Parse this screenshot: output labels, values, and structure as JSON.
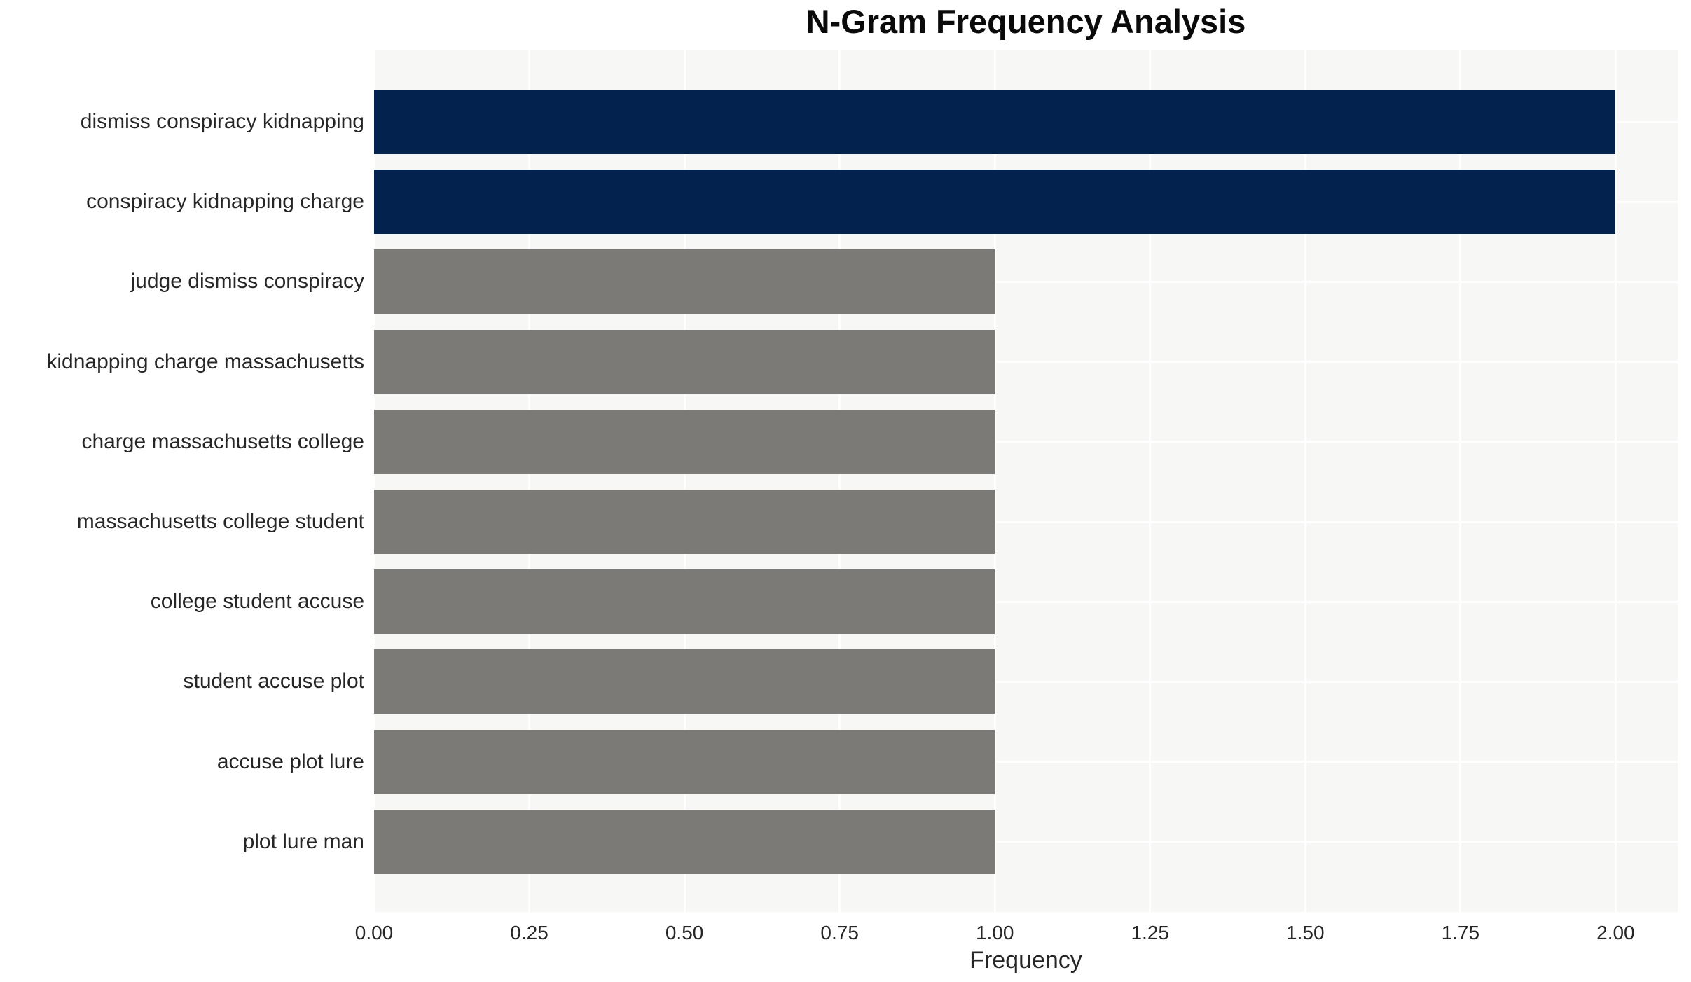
{
  "title": "N-Gram Frequency Analysis",
  "chart_data": {
    "type": "bar",
    "orientation": "horizontal",
    "title": "N-Gram Frequency Analysis",
    "categories": [
      "dismiss conspiracy kidnapping",
      "conspiracy kidnapping charge",
      "judge dismiss conspiracy",
      "kidnapping charge massachusetts",
      "charge massachusetts college",
      "massachusetts college student",
      "college student accuse",
      "student accuse plot",
      "accuse plot lure",
      "plot lure man"
    ],
    "values": [
      2,
      2,
      1,
      1,
      1,
      1,
      1,
      1,
      1,
      1
    ],
    "bar_colors": [
      "#03234e",
      "#03234e",
      "#7b7a77",
      "#7b7a77",
      "#7b7a77",
      "#7b7a77",
      "#7b7a77",
      "#7b7a77",
      "#7b7a77",
      "#7b7a77"
    ],
    "xlabel": "Frequency",
    "ylabel": "",
    "xlim": [
      0,
      2.1
    ],
    "xticks": [
      0,
      0.25,
      0.5,
      0.75,
      1.0,
      1.25,
      1.5,
      1.75,
      2.0
    ],
    "xtick_labels": [
      "0.00",
      "0.25",
      "0.50",
      "0.75",
      "1.00",
      "1.25",
      "1.50",
      "1.75",
      "2.00"
    ],
    "grid": true,
    "legend": "none",
    "plot_background": "#f7f7f6",
    "grid_color": "#ffffff",
    "highlight_color": "#03234e",
    "default_color": "#7b7a77",
    "text_color": "#262626",
    "title_color": "#0a0a0a"
  }
}
